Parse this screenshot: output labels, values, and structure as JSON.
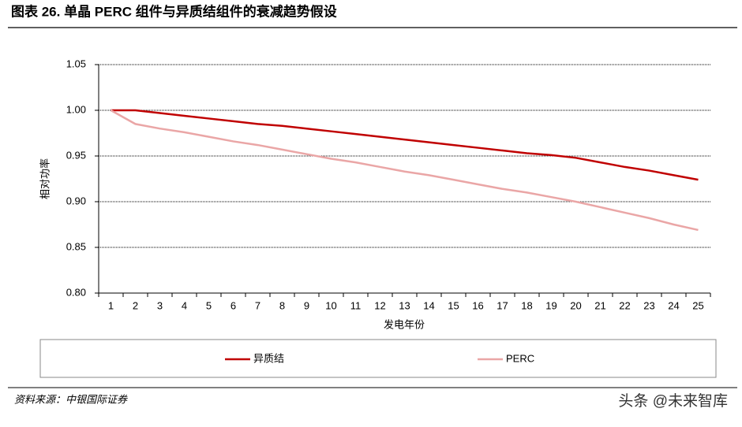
{
  "chart_data": {
    "type": "line",
    "title": "图表 26. 单晶 PERC 组件与异质结组件的衰减趋势假设",
    "y_label": "相对功率",
    "x_label": "发电年份",
    "categories": [
      "1",
      "2",
      "3",
      "4",
      "5",
      "6",
      "7",
      "8",
      "9",
      "10",
      "11",
      "12",
      "13",
      "14",
      "15",
      "16",
      "17",
      "18",
      "19",
      "20",
      "21",
      "22",
      "23",
      "24",
      "25"
    ],
    "series": [
      {
        "name": "异质结",
        "color": "#c00000",
        "values": [
          1.0,
          1.0,
          0.997,
          0.994,
          0.991,
          0.988,
          0.985,
          0.983,
          0.98,
          0.977,
          0.974,
          0.971,
          0.968,
          0.965,
          0.962,
          0.959,
          0.956,
          0.953,
          0.951,
          0.948,
          0.943,
          0.938,
          0.934,
          0.929,
          0.924
        ]
      },
      {
        "name": "PERC",
        "color": "#eaa6a6",
        "values": [
          1.0,
          0.985,
          0.98,
          0.976,
          0.971,
          0.966,
          0.962,
          0.957,
          0.952,
          0.947,
          0.943,
          0.938,
          0.933,
          0.929,
          0.924,
          0.919,
          0.914,
          0.91,
          0.905,
          0.9,
          0.894,
          0.888,
          0.882,
          0.875,
          0.869
        ]
      }
    ],
    "ylim": [
      0.8,
      1.05
    ],
    "yticks": [
      {
        "value": 0.8,
        "label": "0.80"
      },
      {
        "value": 0.85,
        "label": "0.85"
      },
      {
        "value": 0.9,
        "label": "0.90"
      },
      {
        "value": 0.95,
        "label": "0.95"
      },
      {
        "value": 1.0,
        "label": "1.00"
      },
      {
        "value": 1.05,
        "label": "1.05"
      }
    ],
    "grid": true,
    "legend": "bottom",
    "source": "资料来源：中银国际证券",
    "watermark": "头条 @未来智库"
  }
}
